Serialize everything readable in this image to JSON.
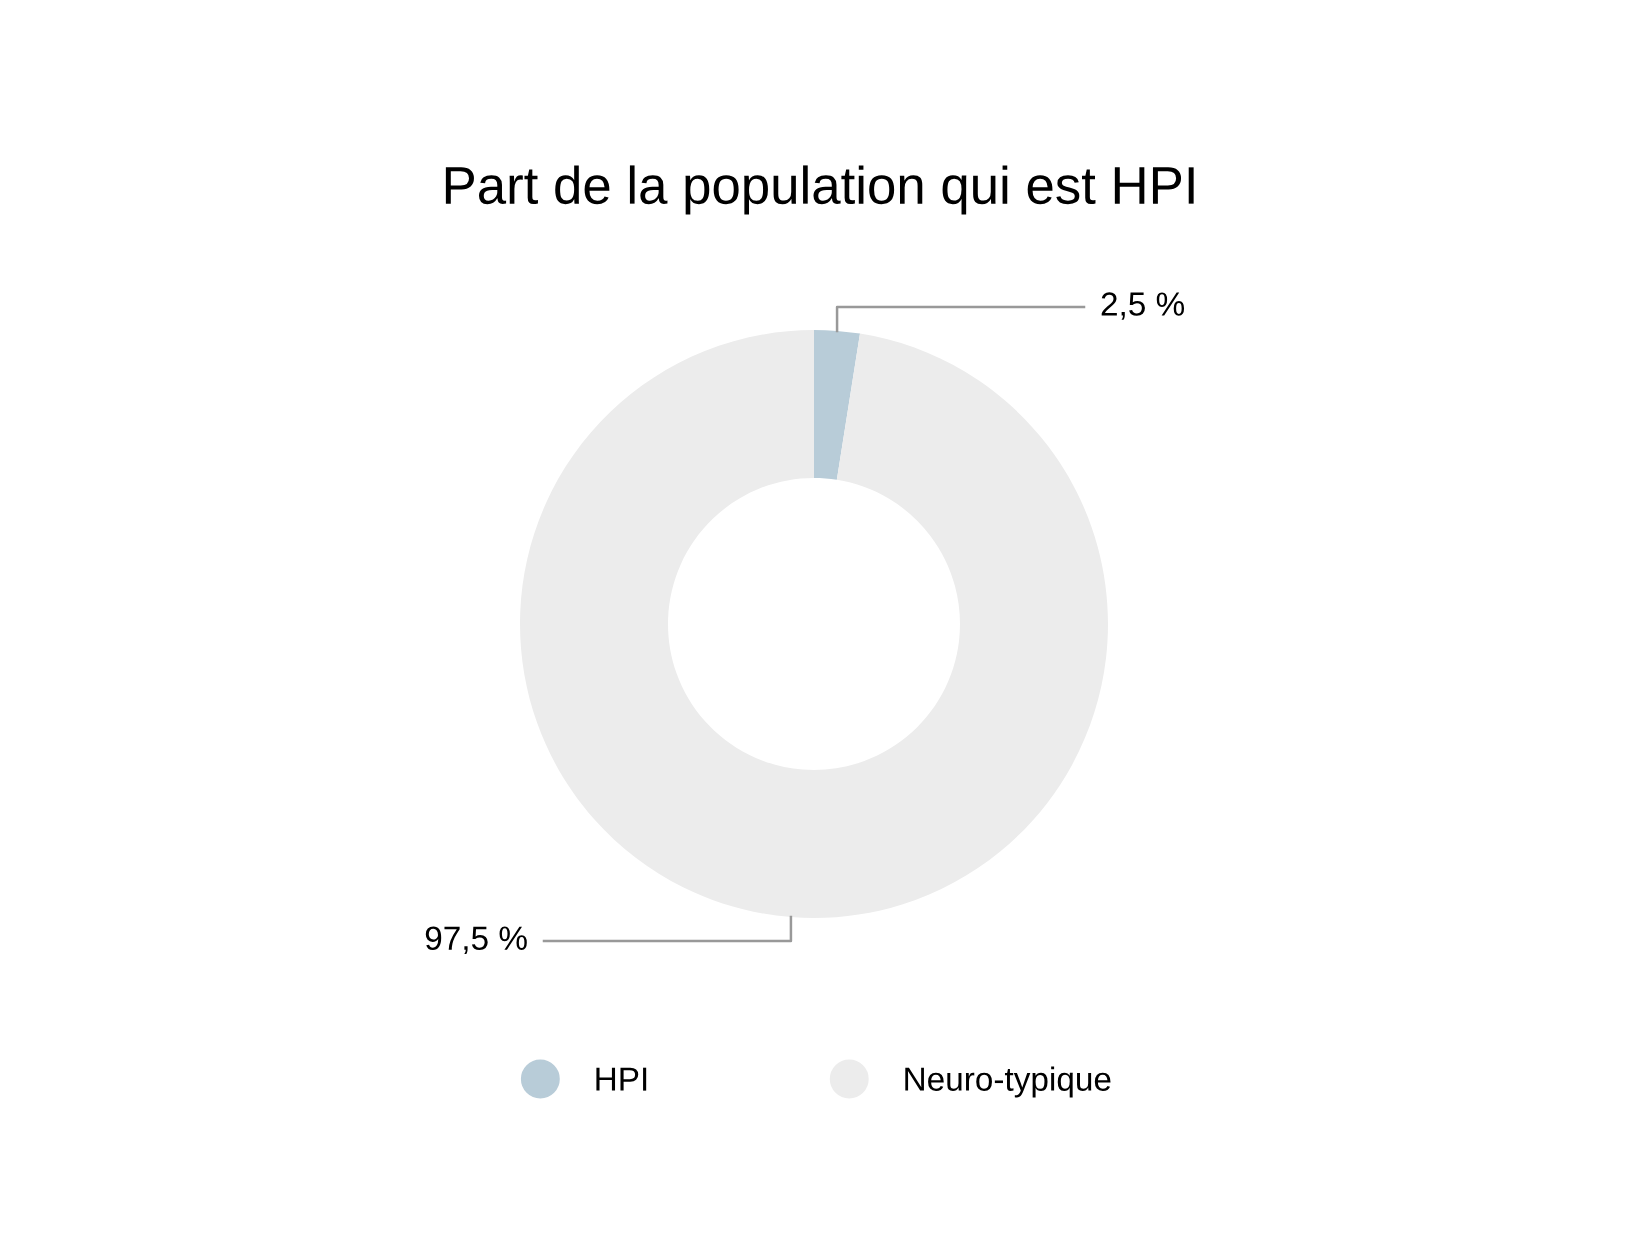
{
  "chart_data": {
    "type": "donut",
    "title": "Part de la population qui est HPI",
    "categories": [
      "HPI",
      "Neuro-typique"
    ],
    "values": [
      2.5,
      97.5
    ],
    "colors": [
      "#b8ccd8",
      "#ececec"
    ],
    "value_labels": [
      "2,5 %",
      "97,5 %"
    ],
    "legend": "bottom"
  }
}
